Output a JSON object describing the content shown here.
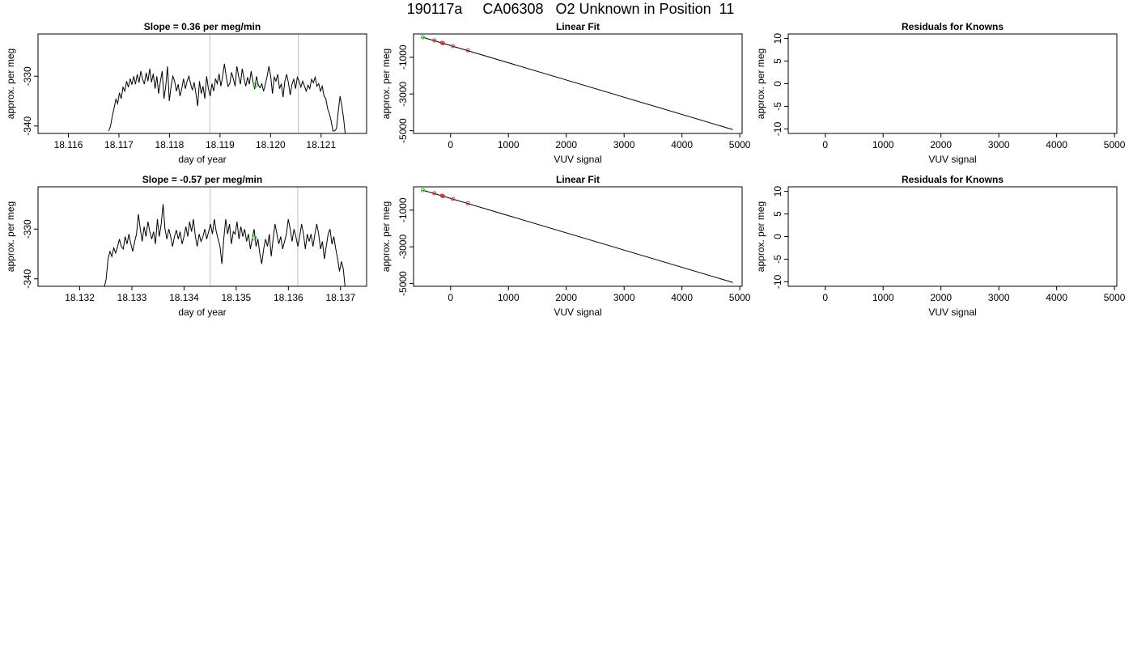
{
  "title": "190117a     CA06308   O2 Unknown in Position  11",
  "colors": {
    "trace": "#000000",
    "vline": "#c8c8c8",
    "known": "#cc3333",
    "unknown": "#22cc22",
    "fit": "#000000"
  },
  "chart_data": [
    {
      "type": "line",
      "title": "Slope =  0.36  per meg/min",
      "xlabel": "day of year",
      "ylabel": "approx. per meg",
      "xlim": [
        18.1154,
        18.1219
      ],
      "ylim": [
        -341.5,
        -321.5
      ],
      "xticks": [
        18.116,
        18.117,
        18.118,
        18.119,
        18.12,
        18.121
      ],
      "xtick_labels": [
        "18.116",
        "18.117",
        "18.118",
        "18.119",
        "18.120",
        "18.121"
      ],
      "yticks": [
        -340,
        -330
      ],
      "ytick_labels": [
        "-340",
        "-330"
      ],
      "vlines": [
        18.1188,
        18.12055
      ],
      "unknown_point": {
        "x": 18.1197,
        "y": -331.8
      },
      "x_start": 18.1168,
      "x_end": 18.12148,
      "y": [
        -341.0,
        -340.0,
        -338.0,
        -336.4,
        -334.6,
        -335.5,
        -333.3,
        -334.5,
        -332.2,
        -333.0,
        -331.0,
        -332.2,
        -330.5,
        -331.7,
        -330.0,
        -331.6,
        -329.6,
        -331.3,
        -329.0,
        -330.6,
        -331.6,
        -329.3,
        -331.0,
        -328.5,
        -331.2,
        -329.5,
        -332.5,
        -330.0,
        -333.5,
        -331.0,
        -329.0,
        -334.5,
        -332.0,
        -328.0,
        -335.0,
        -332.0,
        -330.0,
        -331.0,
        -333.0,
        -331.6,
        -334.0,
        -332.5,
        -330.5,
        -332.5,
        -331.0,
        -330.0,
        -331.5,
        -332.8,
        -331.2,
        -333.5,
        -336.0,
        -331.0,
        -333.5,
        -332.0,
        -334.5,
        -330.0,
        -332.5,
        -334.0,
        -331.5,
        -333.0,
        -330.5,
        -331.5,
        -329.5,
        -332.0,
        -330.0,
        -327.5,
        -330.0,
        -332.0,
        -331.5,
        -329.2,
        -330.5,
        -332.0,
        -328.0,
        -330.0,
        -331.6,
        -328.5,
        -330.5,
        -332.0,
        -330.2,
        -331.6,
        -329.0,
        -331.0,
        -332.6,
        -330.0,
        -331.7,
        -332.3,
        -331.5,
        -333.0,
        -331.6,
        -330.0,
        -328.0,
        -330.0,
        -333.5,
        -330.2,
        -331.0,
        -329.6,
        -332.5,
        -331.5,
        -334.2,
        -331.0,
        -329.6,
        -331.3,
        -333.8,
        -331.6,
        -330.6,
        -332.5,
        -330.2,
        -331.0,
        -332.2,
        -331.0,
        -332.0,
        -333.0,
        -331.8,
        -332.5,
        -330.6,
        -331.3,
        -330.2,
        -332.0,
        -331.5,
        -333.0,
        -332.0,
        -334.0,
        -334.5,
        -336.5,
        -337.5,
        -339.0,
        -341.0,
        -341.0,
        -340.5,
        -337.0,
        -334.0,
        -336.0,
        -338.5,
        -342.0
      ]
    },
    {
      "type": "scatter",
      "title": "Linear Fit",
      "xlabel": "VUV signal",
      "ylabel": "approx. per meg",
      "xlim": [
        -640,
        5040
      ],
      "ylim": [
        -5150,
        270
      ],
      "xticks": [
        0,
        1000,
        2000,
        3000,
        4000,
        5000
      ],
      "xtick_labels": [
        "0",
        "1000",
        "2000",
        "3000",
        "4000",
        "5000"
      ],
      "yticks": [
        -5000,
        -3000,
        -1000
      ],
      "ytick_labels": [
        "-5000",
        "-3000",
        -1000
      ],
      "fit_line": {
        "x": [
          -480,
          4880
        ],
        "y": [
          90,
          -4940
        ]
      },
      "known_points": {
        "x": [
          -280,
          -150,
          -130,
          40,
          300
        ],
        "y": [
          -80,
          -210,
          -240,
          -390,
          -620
        ]
      },
      "unknown_point": {
        "x": -480,
        "y": 90
      }
    },
    {
      "type": "scatter",
      "title": "Residuals for Knowns",
      "xlabel": "VUV signal",
      "ylabel": "approx. per meg",
      "xlim": [
        -640,
        5040
      ],
      "ylim": [
        -11,
        11
      ],
      "xticks": [
        0,
        1000,
        2000,
        3000,
        4000,
        5000
      ],
      "xtick_labels": [
        "0",
        "1000",
        "2000",
        "3000",
        "4000",
        "5000"
      ],
      "yticks": [
        -10,
        -5,
        0,
        5,
        10
      ],
      "ytick_labels": [
        "-10",
        "-5",
        "0",
        "5",
        "10"
      ]
    },
    {
      "type": "line",
      "title": "Slope =  -0.57  per meg/min",
      "xlabel": "day of year",
      "ylabel": "approx. per meg",
      "xlim": [
        18.1312,
        18.1375
      ],
      "ylim": [
        -341.5,
        -321.5
      ],
      "xticks": [
        18.132,
        18.133,
        18.134,
        18.135,
        18.136,
        18.137
      ],
      "xtick_labels": [
        "18.132",
        "18.133",
        "18.134",
        "18.135",
        "18.136",
        "18.137"
      ],
      "yticks": [
        -340,
        -330
      ],
      "ytick_labels": [
        "-340",
        "-330"
      ],
      "vlines": [
        18.1345,
        18.13618
      ],
      "unknown_point": {
        "x": 18.13535,
        "y": -331.8
      },
      "x_start": 18.13247,
      "x_end": 18.13709,
      "y": [
        -341.8,
        -340.0,
        -336.0,
        -334.5,
        -335.5,
        -333.8,
        -334.8,
        -333.5,
        -332.0,
        -333.5,
        -334.0,
        -331.5,
        -333.0,
        -331.0,
        -333.0,
        -334.5,
        -332.5,
        -331.0,
        -327.0,
        -330.0,
        -332.5,
        -329.5,
        -331.5,
        -328.5,
        -330.5,
        -332.0,
        -330.5,
        -333.0,
        -328.0,
        -331.5,
        -329.0,
        -325.0,
        -330.0,
        -332.0,
        -330.0,
        -331.5,
        -333.5,
        -331.5,
        -330.2,
        -332.0,
        -330.5,
        -333.0,
        -331.5,
        -329.5,
        -331.5,
        -328.5,
        -330.5,
        -328.0,
        -331.5,
        -333.5,
        -331.0,
        -332.5,
        -331.5,
        -330.0,
        -332.0,
        -330.5,
        -329.0,
        -331.0,
        -328.0,
        -330.5,
        -332.0,
        -333.5,
        -337.0,
        -332.0,
        -328.0,
        -331.0,
        -329.0,
        -333.0,
        -330.5,
        -331.0,
        -328.5,
        -332.0,
        -329.5,
        -331.5,
        -330.0,
        -332.5,
        -331.0,
        -334.0,
        -332.0,
        -330.0,
        -333.5,
        -332.0,
        -335.0,
        -337.0,
        -334.0,
        -332.0,
        -333.5,
        -331.0,
        -335.5,
        -332.0,
        -329.0,
        -331.0,
        -333.0,
        -331.5,
        -334.0,
        -332.5,
        -331.0,
        -328.0,
        -330.0,
        -332.5,
        -330.0,
        -331.5,
        -333.5,
        -331.5,
        -329.0,
        -331.0,
        -334.0,
        -331.0,
        -332.5,
        -331.0,
        -333.5,
        -331.0,
        -329.0,
        -331.0,
        -334.0,
        -332.5,
        -336.0,
        -333.5,
        -331.0,
        -330.0,
        -333.0,
        -331.5,
        -334.0,
        -336.0,
        -338.5,
        -336.5,
        -338.0,
        -342.0
      ]
    },
    {
      "type": "scatter",
      "title": "Linear Fit",
      "xlabel": "VUV signal",
      "ylabel": "approx. per meg",
      "xlim": [
        -640,
        5040
      ],
      "ylim": [
        -5150,
        270
      ],
      "xticks": [
        0,
        1000,
        2000,
        3000,
        4000,
        5000
      ],
      "xtick_labels": [
        "0",
        "1000",
        "2000",
        "3000",
        "4000",
        "5000"
      ],
      "yticks": [
        -5000,
        -3000,
        -1000
      ],
      "ytick_labels": [
        "-5000",
        "-3000",
        "-1000"
      ],
      "fit_line": {
        "x": [
          -480,
          4880
        ],
        "y": [
          90,
          -4940
        ]
      },
      "known_points": {
        "x": [
          -280,
          -150,
          -130,
          40,
          300
        ],
        "y": [
          -80,
          -210,
          -240,
          -390,
          -620
        ]
      },
      "unknown_point": {
        "x": -480,
        "y": 90
      }
    },
    {
      "type": "scatter",
      "title": "Residuals for Knowns",
      "xlabel": "VUV signal",
      "ylabel": "approx. per meg",
      "xlim": [
        -640,
        5040
      ],
      "ylim": [
        -11,
        11
      ],
      "xticks": [
        0,
        1000,
        2000,
        3000,
        4000,
        5000
      ],
      "xtick_labels": [
        "0",
        "1000",
        "2000",
        "3000",
        "4000",
        "5000"
      ],
      "yticks": [
        -10,
        -5,
        0,
        5,
        10
      ],
      "ytick_labels": [
        "-10",
        "-5",
        "0",
        "5",
        "10"
      ]
    }
  ]
}
